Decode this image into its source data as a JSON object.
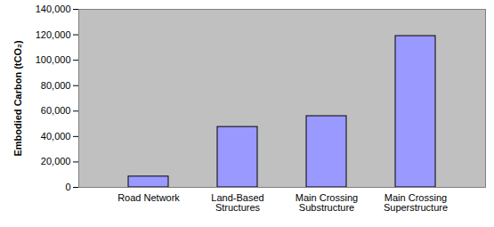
{
  "chart_data": {
    "type": "bar",
    "y_label": "Embodied Carbon (tCO₂)",
    "categories": [
      "Road Network",
      "Land-Based\nStructures",
      "Main Crossing\nSubstructure",
      "Main Crossing\nSuperstructure"
    ],
    "values": [
      8500,
      47500,
      56000,
      119000
    ],
    "color": "#9999ff",
    "ylim": [
      0,
      140000
    ],
    "yticks": [
      0,
      {
        "value": 20000,
        "label": "20,000"
      },
      {
        "value": 40000,
        "label": "40,000"
      },
      {
        "value": 60000,
        "label": "60,000"
      },
      {
        "value": 80000,
        "label": "80,000"
      },
      {
        "value": 100000,
        "label": "100,000"
      },
      {
        "value": 120000,
        "label": "120,000"
      },
      {
        "value": 140000,
        "label": "140,000"
      }
    ],
    "grid": false
  }
}
